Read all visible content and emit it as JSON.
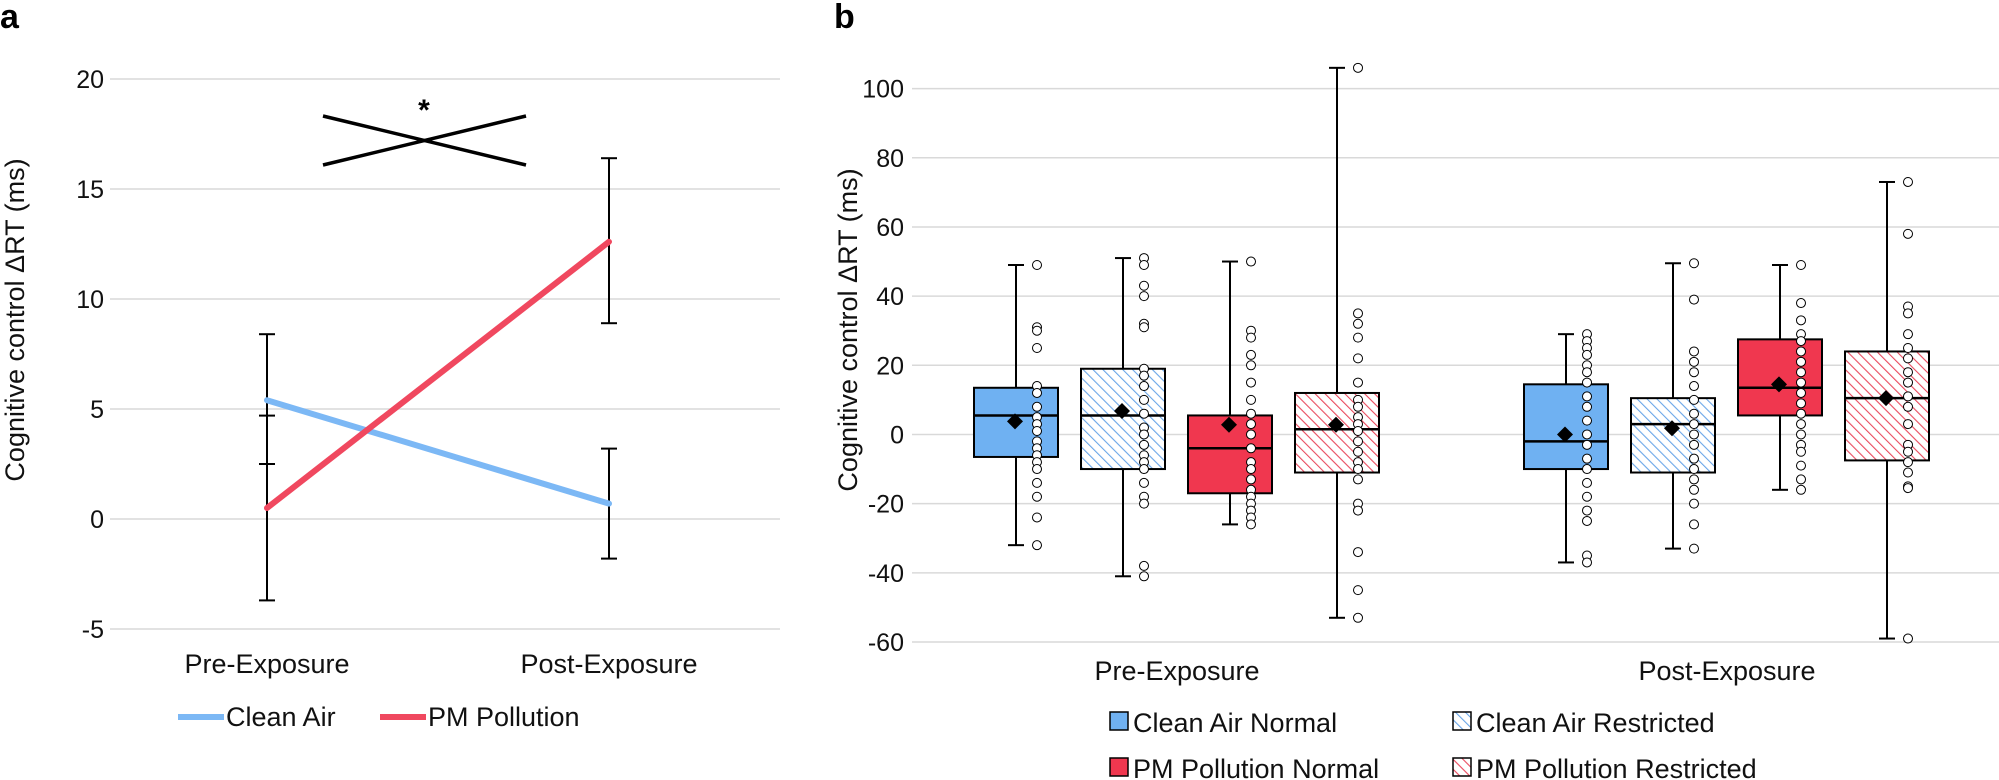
{
  "colors": {
    "clean": "#7cb8f5",
    "pm": "#f0485f",
    "clean_fill": "#6fb1f2",
    "pm_fill": "#f0374f",
    "clean_hatch": "#6aa6e8",
    "pm_hatch": "#ea4a5e"
  },
  "chart_data": [
    {
      "panel": "a",
      "type": "line",
      "ylabel": "Cognitive control ΔRT (ms)",
      "ylim": [
        -5,
        20
      ],
      "yticks": [
        20,
        15,
        10,
        5,
        0,
        -5
      ],
      "ytick_labels": [
        "20",
        "15",
        "10",
        "5",
        "0",
        "-5"
      ],
      "categories": [
        "Pre-Exposure",
        "Post-Exposure"
      ],
      "series": [
        {
          "name": "Clean Air",
          "values": [
            5.4,
            0.7
          ],
          "err_low": [
            2.5,
            -1.8
          ],
          "err_high": [
            8.4,
            3.2
          ]
        },
        {
          "name": "PM Pollution",
          "values": [
            0.5,
            12.6
          ],
          "err_low": [
            -3.7,
            8.9
          ],
          "err_high": [
            4.7,
            16.4
          ]
        }
      ],
      "significance": "*",
      "grid": true,
      "legend": "bottom"
    },
    {
      "panel": "b",
      "type": "box",
      "ylabel": "Cognitive control ΔRT (ms)",
      "ylim": [
        -60,
        110
      ],
      "yticks": [
        100,
        80,
        60,
        40,
        20,
        0,
        -20,
        -40,
        -60
      ],
      "ytick_labels": [
        "100",
        "80",
        "60",
        "40",
        "20",
        "0",
        "-20",
        "-40",
        "-60"
      ],
      "categories": [
        "Pre-Exposure",
        "Post-Exposure"
      ],
      "series_names": [
        "Clean Air Normal",
        "Clean Air Restricted",
        "PM Pollution Normal",
        "PM Pollution Restricted"
      ],
      "boxes": [
        {
          "category": "Pre-Exposure",
          "series": "Clean Air Normal",
          "min": -32,
          "q1": -6.5,
          "median": 5.5,
          "q3": 13.5,
          "max": 49,
          "mean": 3.8,
          "points": [
            49,
            31,
            30,
            25,
            14,
            12,
            8,
            5,
            3,
            1,
            -2,
            -4,
            -6,
            -8,
            -10,
            -14,
            -18,
            -24,
            -32
          ]
        },
        {
          "category": "Pre-Exposure",
          "series": "Clean Air Restricted",
          "min": -41,
          "q1": -10,
          "median": 5.5,
          "q3": 19,
          "max": 51,
          "mean": 6.8,
          "points": [
            51,
            49,
            43,
            40,
            32,
            31,
            19,
            17,
            14,
            10,
            6,
            2,
            0,
            -3,
            -6,
            -8,
            -10,
            -14,
            -18,
            -20,
            -38,
            -41
          ]
        },
        {
          "category": "Pre-Exposure",
          "series": "PM Pollution Normal",
          "min": -26,
          "q1": -17,
          "median": -4,
          "q3": 5.5,
          "max": 50,
          "mean": 2.8,
          "points": [
            50,
            30,
            28,
            23,
            20,
            15,
            10,
            6,
            3,
            0,
            -4,
            -8,
            -10,
            -13,
            -16,
            -18,
            -20,
            -22,
            -24,
            -26
          ]
        },
        {
          "category": "Pre-Exposure",
          "series": "PM Pollution Restricted",
          "min": -53,
          "q1": -11,
          "median": 1.5,
          "q3": 12,
          "max": 106,
          "mean": 2.8,
          "points": [
            106,
            35,
            32,
            28,
            22,
            15,
            10,
            8,
            5,
            3,
            1,
            -2,
            -5,
            -8,
            -10,
            -13,
            -20,
            -22,
            -34,
            -45,
            -53
          ]
        },
        {
          "category": "Post-Exposure",
          "series": "Clean Air Normal",
          "min": -37,
          "q1": -10,
          "median": -2,
          "q3": 14.5,
          "max": 29,
          "mean": 0,
          "points": [
            29,
            27,
            25,
            23,
            20,
            18,
            15,
            11,
            8,
            4,
            0,
            -3,
            -7,
            -10,
            -14,
            -18,
            -22,
            -25,
            -35,
            -37
          ]
        },
        {
          "category": "Post-Exposure",
          "series": "Clean Air Restricted",
          "min": -33,
          "q1": -11,
          "median": 3,
          "q3": 10.5,
          "max": 49.5,
          "mean": 1.8,
          "points": [
            49.5,
            39,
            24,
            21,
            18,
            14,
            10,
            6,
            3,
            0,
            -3,
            -7,
            -10,
            -13,
            -16,
            -20,
            -26,
            -33
          ]
        },
        {
          "category": "Post-Exposure",
          "series": "PM Pollution Normal",
          "min": -16,
          "q1": 5.5,
          "median": 13.5,
          "q3": 27.5,
          "max": 49,
          "mean": 14.5,
          "points": [
            49,
            38,
            33,
            29,
            27,
            24,
            21,
            18,
            15,
            12,
            9,
            6,
            3,
            0,
            -3,
            -5,
            -9,
            -13,
            -16
          ]
        },
        {
          "category": "Post-Exposure",
          "series": "PM Pollution Restricted",
          "min": -59,
          "q1": -7.5,
          "median": 10.5,
          "q3": 24,
          "max": 73,
          "mean": 10.5,
          "points": [
            73,
            58,
            37,
            35,
            29,
            25,
            22,
            18,
            15,
            11,
            8,
            3,
            -3,
            -5,
            -8,
            -11,
            -15,
            -15.5,
            -59
          ]
        }
      ],
      "grid": true,
      "legend": "bottom"
    }
  ],
  "legend_a": [
    "Clean Air",
    "PM Pollution"
  ],
  "legend_b": [
    "Clean Air Normal",
    "Clean Air Restricted",
    "PM Pollution Normal",
    "PM Pollution Restricted"
  ],
  "panel_labels": [
    "a",
    "b"
  ]
}
